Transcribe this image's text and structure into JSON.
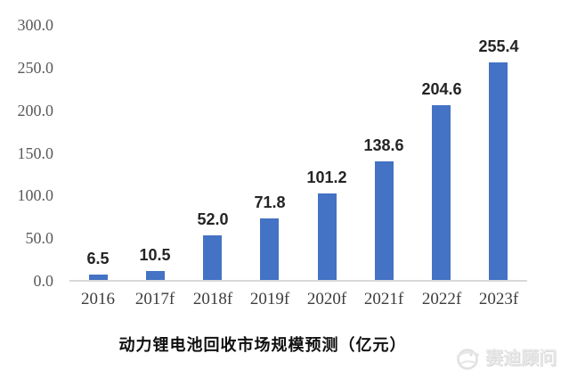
{
  "chart_data": {
    "type": "bar",
    "title": "动力锂电池回收市场规模预测（亿元）",
    "categories": [
      "2016",
      "2017f",
      "2018f",
      "2019f",
      "2020f",
      "2021f",
      "2022f",
      "2023f"
    ],
    "values": [
      6.5,
      10.5,
      52.0,
      71.8,
      101.2,
      138.6,
      204.6,
      255.4
    ],
    "data_labels": [
      "6.5",
      "10.5",
      "52.0",
      "71.8",
      "101.2",
      "138.6",
      "204.6",
      "255.4"
    ],
    "xlabel": "",
    "ylabel": "",
    "ylim": [
      0,
      300
    ],
    "ytick_step": 50,
    "ytick_labels": [
      "300.0",
      "250.0",
      "200.0",
      "150.0",
      "100.0",
      "50.0",
      "0.0"
    ],
    "grid": false,
    "legend": "none",
    "bar_color": "#4472c4"
  },
  "colors": {
    "bar": "#4472c4",
    "y_axis_text": "#5a5a5a",
    "x_axis_text": "#3d3d3d",
    "value_label_text": "#242424",
    "axis_line": "#d8d8d8",
    "title_text": "#101010",
    "watermark_text": "#e9e9e9",
    "background": "#ffffff"
  },
  "watermark": {
    "text": "赛迪顾问",
    "logo": "saidi-consulting-globe-logo"
  }
}
